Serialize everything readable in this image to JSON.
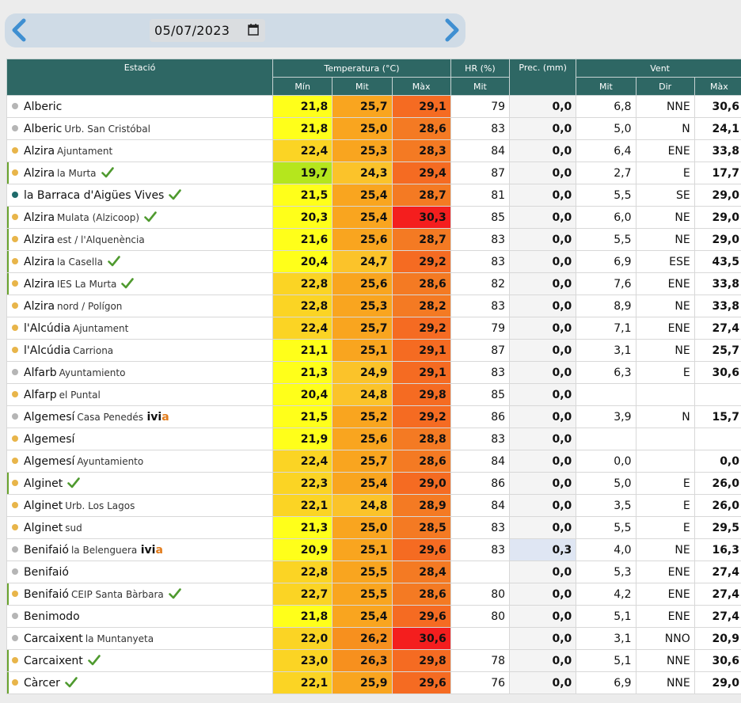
{
  "date": {
    "value": "05/07/2023"
  },
  "headers": {
    "station": "Estació",
    "temp": "Temperatura (°C)",
    "hr": "HR (%)",
    "prec": "Prec. (mm)",
    "wind": "Vent",
    "min": "Mín",
    "mit": "Mit",
    "max": "Màx",
    "hr_mit": "Mit",
    "w_mit": "Mit",
    "dir": "Dir",
    "w_max": "Màx"
  },
  "colors": {
    "header": "#2e6764",
    "dot_orange": "#e8b54a",
    "dot_gray": "#b5b5b5",
    "dot_teal": "#1f6b6b",
    "check": "#4f9a2f",
    "ivia_a": "#e27b1a"
  },
  "rows": [
    {
      "name": "Alberic",
      "sub": "",
      "dot": "gray",
      "bar": false,
      "check": false,
      "min": "21,8",
      "mit": "25,7",
      "max": "29,1",
      "hr": "79",
      "prec": "0,0",
      "wmit": "6,8",
      "dir": "NNE",
      "wmax": "30,6",
      "minBg": "#ffff1a",
      "mitBg": "#f9a51f",
      "maxBg": "#f56b22"
    },
    {
      "name": "Alberic",
      "sub": "Urb. San Cristóbal",
      "dot": "gray",
      "bar": false,
      "check": false,
      "min": "21,8",
      "mit": "25,0",
      "max": "28,6",
      "hr": "83",
      "prec": "0,0",
      "wmit": "5,0",
      "dir": "N",
      "wmax": "24,1",
      "minBg": "#ffff1a",
      "mitBg": "#f9a51f",
      "maxBg": "#f47a23"
    },
    {
      "name": "Alzira",
      "sub": "Ajuntament",
      "dot": "orange",
      "bar": false,
      "check": false,
      "min": "22,4",
      "mit": "25,3",
      "max": "28,3",
      "hr": "84",
      "prec": "0,0",
      "wmit": "6,4",
      "dir": "ENE",
      "wmax": "33,8",
      "minBg": "#fbd424",
      "mitBg": "#f9a51f",
      "maxBg": "#f47a23"
    },
    {
      "name": "Alzira",
      "sub": "la Murta",
      "dot": "orange",
      "bar": true,
      "check": true,
      "min": "19,7",
      "mit": "24,3",
      "max": "29,4",
      "hr": "87",
      "prec": "0,0",
      "wmit": "2,7",
      "dir": "E",
      "wmax": "17,7",
      "minBg": "#b5e61d",
      "mitBg": "#fbc32a",
      "maxBg": "#f56b22"
    },
    {
      "name": "la Barraca d'Aigües Vives",
      "sub": "",
      "dot": "teal",
      "bar": false,
      "check": true,
      "min": "21,5",
      "mit": "25,4",
      "max": "28,7",
      "hr": "81",
      "prec": "0,0",
      "wmit": "5,5",
      "dir": "SE",
      "wmax": "29,0",
      "minBg": "#ffff1a",
      "mitBg": "#f9a51f",
      "maxBg": "#f47a23"
    },
    {
      "name": "Alzira",
      "sub": "Mulata (Alzicoop)",
      "dot": "orange",
      "bar": true,
      "check": true,
      "min": "20,3",
      "mit": "25,4",
      "max": "30,3",
      "hr": "85",
      "prec": "0,0",
      "wmit": "6,0",
      "dir": "NE",
      "wmax": "29,0",
      "minBg": "#ffff1a",
      "mitBg": "#f9a51f",
      "maxBg": "#f41e1e"
    },
    {
      "name": "Alzira",
      "sub": "est / l'Alquenència",
      "dot": "orange",
      "bar": true,
      "check": false,
      "min": "21,6",
      "mit": "25,6",
      "max": "28,7",
      "hr": "83",
      "prec": "0,0",
      "wmit": "5,5",
      "dir": "NE",
      "wmax": "29,0",
      "minBg": "#ffff1a",
      "mitBg": "#f9a51f",
      "maxBg": "#f47a23"
    },
    {
      "name": "Alzira",
      "sub": "la Casella",
      "dot": "orange",
      "bar": true,
      "check": true,
      "min": "20,4",
      "mit": "24,7",
      "max": "29,2",
      "hr": "83",
      "prec": "0,0",
      "wmit": "6,9",
      "dir": "ESE",
      "wmax": "43,5",
      "minBg": "#ffff1a",
      "mitBg": "#fbc32a",
      "maxBg": "#f56b22"
    },
    {
      "name": "Alzira",
      "sub": "IES La Murta",
      "dot": "orange",
      "bar": true,
      "check": true,
      "min": "22,8",
      "mit": "25,6",
      "max": "28,6",
      "hr": "82",
      "prec": "0,0",
      "wmit": "7,6",
      "dir": "ENE",
      "wmax": "33,8",
      "minBg": "#fbd424",
      "mitBg": "#f9a51f",
      "maxBg": "#f47a23"
    },
    {
      "name": "Alzira",
      "sub": "nord / Polígon",
      "dot": "orange",
      "bar": false,
      "check": false,
      "min": "22,8",
      "mit": "25,3",
      "max": "28,2",
      "hr": "83",
      "prec": "0,0",
      "wmit": "8,9",
      "dir": "NE",
      "wmax": "33,8",
      "minBg": "#fbd424",
      "mitBg": "#f9a51f",
      "maxBg": "#f47a23"
    },
    {
      "name": "l'Alcúdia",
      "sub": "Ajuntament",
      "dot": "orange",
      "bar": false,
      "check": false,
      "min": "22,4",
      "mit": "25,7",
      "max": "29,2",
      "hr": "79",
      "prec": "0,0",
      "wmit": "7,1",
      "dir": "ENE",
      "wmax": "27,4",
      "minBg": "#fbd424",
      "mitBg": "#f9a51f",
      "maxBg": "#f56b22"
    },
    {
      "name": "l'Alcúdia",
      "sub": "Carriona",
      "dot": "orange",
      "bar": false,
      "check": false,
      "min": "21,1",
      "mit": "25,1",
      "max": "29,1",
      "hr": "87",
      "prec": "0,0",
      "wmit": "3,1",
      "dir": "NE",
      "wmax": "25,7",
      "minBg": "#ffff1a",
      "mitBg": "#f9a51f",
      "maxBg": "#f56b22"
    },
    {
      "name": "Alfarb",
      "sub": "Ayuntamiento",
      "dot": "gray",
      "bar": false,
      "check": false,
      "min": "21,3",
      "mit": "24,9",
      "max": "29,1",
      "hr": "83",
      "prec": "0,0",
      "wmit": "6,3",
      "dir": "E",
      "wmax": "30,6",
      "minBg": "#ffff1a",
      "mitBg": "#fbc32a",
      "maxBg": "#f56b22"
    },
    {
      "name": "Alfarp",
      "sub": "el Puntal",
      "dot": "orange",
      "bar": false,
      "check": false,
      "min": "20,4",
      "mit": "24,8",
      "max": "29,8",
      "hr": "85",
      "prec": "0,0",
      "wmit": "",
      "dir": "",
      "wmax": "",
      "minBg": "#ffff1a",
      "mitBg": "#fbc32a",
      "maxBg": "#f56b22"
    },
    {
      "name": "Algemesí",
      "sub": "Casa Penedés",
      "ivia": true,
      "dot": "gray",
      "bar": false,
      "check": false,
      "min": "21,5",
      "mit": "25,2",
      "max": "29,2",
      "hr": "86",
      "prec": "0,0",
      "wmit": "3,9",
      "dir": "N",
      "wmax": "15,7",
      "minBg": "#ffff1a",
      "mitBg": "#f9a51f",
      "maxBg": "#f56b22"
    },
    {
      "name": "Algemesí",
      "sub": "",
      "dot": "orange",
      "bar": false,
      "check": false,
      "min": "21,9",
      "mit": "25,6",
      "max": "28,8",
      "hr": "83",
      "prec": "0,0",
      "wmit": "",
      "dir": "",
      "wmax": "",
      "minBg": "#ffff1a",
      "mitBg": "#f9a51f",
      "maxBg": "#f47a23"
    },
    {
      "name": "Algemesí",
      "sub": "Ayuntamiento",
      "dot": "orange",
      "bar": false,
      "check": false,
      "min": "22,4",
      "mit": "25,7",
      "max": "28,6",
      "hr": "84",
      "prec": "0,0",
      "wmit": "0,0",
      "dir": "",
      "wmax": "0,0",
      "minBg": "#fbd424",
      "mitBg": "#f9a51f",
      "maxBg": "#f47a23"
    },
    {
      "name": "Alginet",
      "sub": "",
      "dot": "orange",
      "bar": true,
      "check": true,
      "min": "22,3",
      "mit": "25,4",
      "max": "29,0",
      "hr": "86",
      "prec": "0,0",
      "wmit": "5,0",
      "dir": "E",
      "wmax": "26,0",
      "minBg": "#fbd424",
      "mitBg": "#f9a51f",
      "maxBg": "#f56b22"
    },
    {
      "name": "Alginet",
      "sub": "Urb. Los Lagos",
      "dot": "orange",
      "bar": false,
      "check": false,
      "min": "22,1",
      "mit": "24,8",
      "max": "28,9",
      "hr": "84",
      "prec": "0,0",
      "wmit": "3,5",
      "dir": "E",
      "wmax": "26,0",
      "minBg": "#fbd424",
      "mitBg": "#fbc32a",
      "maxBg": "#f47a23"
    },
    {
      "name": "Alginet",
      "sub": "sud",
      "dot": "orange",
      "bar": false,
      "check": false,
      "min": "21,3",
      "mit": "25,0",
      "max": "28,5",
      "hr": "83",
      "prec": "0,0",
      "wmit": "5,5",
      "dir": "E",
      "wmax": "29,5",
      "minBg": "#ffff1a",
      "mitBg": "#f9a51f",
      "maxBg": "#f47a23"
    },
    {
      "name": "Benifaió",
      "sub": "la Belenguera",
      "ivia": true,
      "dot": "gray",
      "bar": false,
      "check": false,
      "min": "20,9",
      "mit": "25,1",
      "max": "29,6",
      "hr": "83",
      "prec": "0,3",
      "precHl": true,
      "wmit": "4,0",
      "dir": "NE",
      "wmax": "16,3",
      "minBg": "#ffff1a",
      "mitBg": "#f9a51f",
      "maxBg": "#f56b22"
    },
    {
      "name": "Benifaió",
      "sub": "",
      "dot": "gray",
      "bar": false,
      "check": false,
      "min": "22,8",
      "mit": "25,5",
      "max": "28,4",
      "hr": "",
      "prec": "0,0",
      "wmit": "5,3",
      "dir": "ENE",
      "wmax": "27,4",
      "minBg": "#fbd424",
      "mitBg": "#f9a51f",
      "maxBg": "#f47a23"
    },
    {
      "name": "Benifaió",
      "sub": "CEIP Santa Bàrbara",
      "dot": "orange",
      "bar": true,
      "check": true,
      "min": "22,7",
      "mit": "25,5",
      "max": "28,6",
      "hr": "80",
      "prec": "0,0",
      "wmit": "4,2",
      "dir": "ENE",
      "wmax": "27,4",
      "minBg": "#fbd424",
      "mitBg": "#f9a51f",
      "maxBg": "#f47a23"
    },
    {
      "name": "Benimodo",
      "sub": "",
      "dot": "gray",
      "bar": false,
      "check": false,
      "min": "21,8",
      "mit": "25,4",
      "max": "29,6",
      "hr": "80",
      "prec": "0,0",
      "wmit": "5,1",
      "dir": "ENE",
      "wmax": "27,4",
      "minBg": "#ffff1a",
      "mitBg": "#f9a51f",
      "maxBg": "#f56b22"
    },
    {
      "name": "Carcaixent",
      "sub": "la Muntanyeta",
      "dot": "gray",
      "bar": false,
      "check": false,
      "min": "22,0",
      "mit": "26,2",
      "max": "30,6",
      "hr": "",
      "prec": "0,0",
      "wmit": "3,1",
      "dir": "NNO",
      "wmax": "20,9",
      "minBg": "#fbd424",
      "mitBg": "#f7901e",
      "maxBg": "#f41e1e"
    },
    {
      "name": "Carcaixent",
      "sub": "",
      "dot": "orange",
      "bar": true,
      "check": true,
      "min": "23,0",
      "mit": "26,3",
      "max": "29,8",
      "hr": "78",
      "prec": "0,0",
      "wmit": "5,1",
      "dir": "NNE",
      "wmax": "30,6",
      "minBg": "#fbd424",
      "mitBg": "#f7901e",
      "maxBg": "#f56b22"
    },
    {
      "name": "Càrcer",
      "sub": "",
      "dot": "orange",
      "bar": true,
      "check": true,
      "min": "22,1",
      "mit": "25,9",
      "max": "29,6",
      "hr": "76",
      "prec": "0,0",
      "wmit": "6,9",
      "dir": "NNE",
      "wmax": "29,0",
      "minBg": "#fbd424",
      "mitBg": "#f9a51f",
      "maxBg": "#f56b22"
    }
  ]
}
